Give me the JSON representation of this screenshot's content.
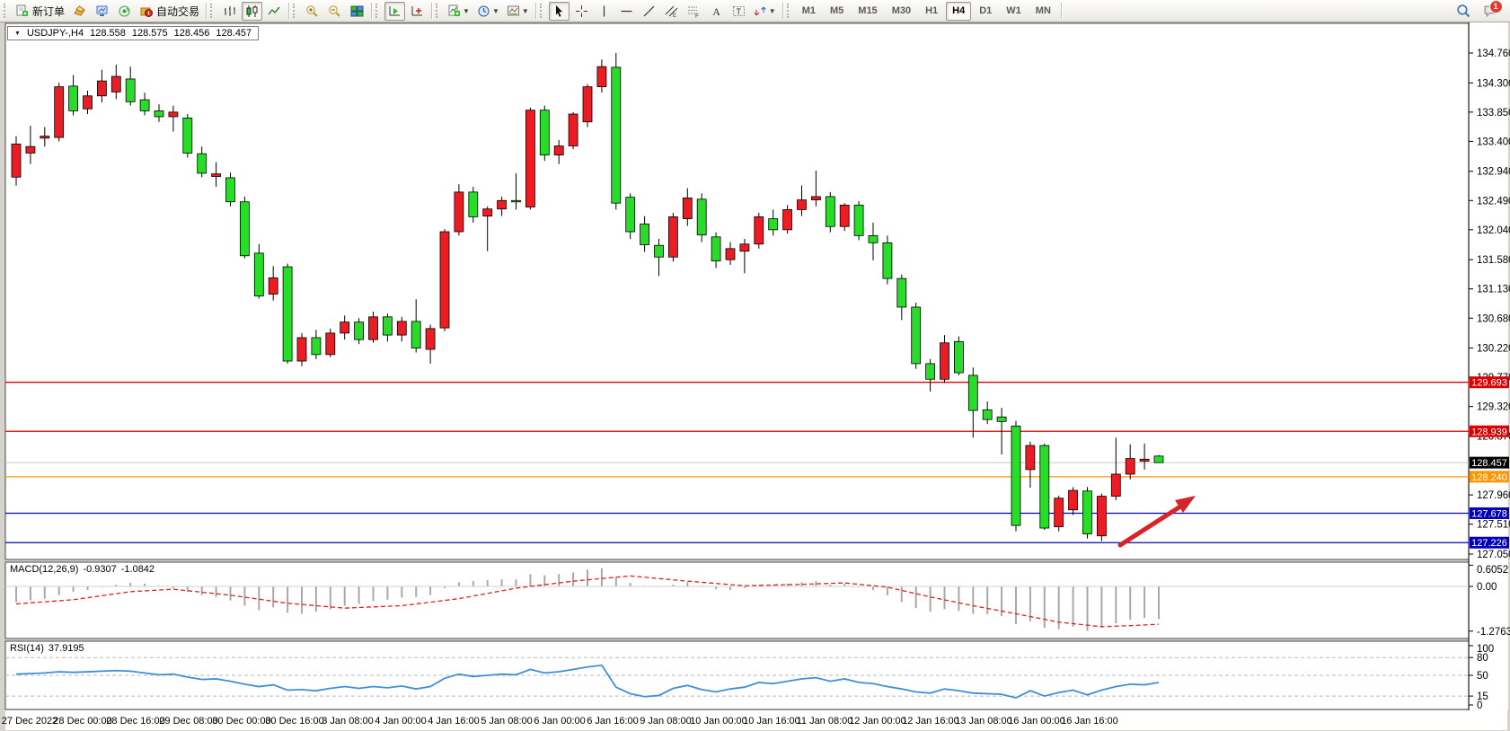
{
  "app": {
    "name": "MetaTrader 4",
    "language": "zh-CN"
  },
  "toolbar": {
    "groups": [
      {
        "name": "trading",
        "items": [
          {
            "name": "new-order-button",
            "icon": "new-order-icon",
            "label": "新订单"
          },
          {
            "name": "chart-profile-button",
            "icon": "gold-cube-icon"
          },
          {
            "name": "terminal-button",
            "icon": "terminal-icon"
          },
          {
            "name": "signals-button",
            "icon": "signal-icon"
          },
          {
            "name": "auto-trading-button",
            "icon": "auto-trading-icon",
            "label": "自动交易"
          }
        ]
      },
      {
        "name": "chart-type",
        "items": [
          {
            "name": "bar-chart-button",
            "icon": "bar-chart-icon"
          },
          {
            "name": "candlestick-chart-button",
            "icon": "candlestick-icon",
            "active": true
          },
          {
            "name": "line-chart-button",
            "icon": "line-chart-icon"
          }
        ]
      },
      {
        "name": "zoom",
        "items": [
          {
            "name": "zoom-in-button",
            "icon": "zoom-in-icon"
          },
          {
            "name": "zoom-out-button",
            "icon": "zoom-out-icon"
          },
          {
            "name": "tile-windows-button",
            "icon": "tile-windows-icon"
          }
        ]
      },
      {
        "name": "scrolling",
        "items": [
          {
            "name": "auto-scroll-button",
            "icon": "auto-scroll-icon",
            "active": true
          },
          {
            "name": "chart-shift-button",
            "icon": "chart-shift-icon"
          }
        ]
      },
      {
        "name": "objects",
        "items": [
          {
            "name": "indicators-button",
            "icon": "indicators-icon",
            "dropdown": true
          },
          {
            "name": "periods-button",
            "icon": "clock-icon",
            "dropdown": true
          },
          {
            "name": "templates-button",
            "icon": "template-icon",
            "dropdown": true
          }
        ]
      },
      {
        "name": "drawing",
        "items": [
          {
            "name": "cursor-button",
            "icon": "cursor-icon",
            "active": true
          },
          {
            "name": "crosshair-button",
            "icon": "crosshair-icon"
          },
          {
            "name": "vertical-line-button",
            "icon": "vertical-line-icon"
          },
          {
            "name": "horizontal-line-button",
            "icon": "horizontal-line-icon"
          },
          {
            "name": "trendline-button",
            "icon": "trendline-icon"
          },
          {
            "name": "equidistant-channel-button",
            "icon": "channel-icon"
          },
          {
            "name": "fibonacci-button",
            "icon": "fibonacci-icon"
          },
          {
            "name": "text-button",
            "icon": "text-icon"
          },
          {
            "name": "text-label-button",
            "icon": "text-label-icon"
          },
          {
            "name": "arrows-button",
            "icon": "arrows-icon",
            "dropdown": true
          }
        ]
      }
    ],
    "timeframes": {
      "options": [
        "M1",
        "M5",
        "M15",
        "M30",
        "H1",
        "H4",
        "D1",
        "W1",
        "MN"
      ],
      "active": "H4"
    },
    "right_items": [
      {
        "name": "search-button",
        "icon": "search-icon"
      },
      {
        "name": "notifications-button",
        "icon": "chat-icon",
        "badge": "1"
      }
    ]
  },
  "chart": {
    "info_bar": {
      "collapse_glyph": "▼",
      "symbol_period": "USDJPY-,H4",
      "open": "128.558",
      "high": "128.575",
      "low": "128.456",
      "close": "128.457"
    },
    "y_axis_ticks": [
      "134.760",
      "134.300",
      "133.850",
      "133.400",
      "132.940",
      "132.490",
      "132.040",
      "131.580",
      "131.130",
      "130.680",
      "130.220",
      "129.770",
      "129.320",
      "128.870",
      "127.960",
      "127.510",
      "127.050"
    ],
    "price_lines": [
      {
        "name": "resistance-line-1",
        "value": 129.693,
        "label": "129.693",
        "color": "#dd0000",
        "label_bg": "#dd0000"
      },
      {
        "name": "resistance-line-2",
        "value": 128.939,
        "label": "128.939",
        "color": "#dd0000",
        "label_bg": "#dd0000"
      },
      {
        "name": "bid-price-line",
        "value": 128.457,
        "label": "128.457",
        "color": "#c6c6c6",
        "label_bg": "#000000"
      },
      {
        "name": "alert-line",
        "value": 128.24,
        "label": "128.240",
        "color": "#ff9500",
        "label_bg": "#ff9500"
      },
      {
        "name": "support-line-1",
        "value": 127.678,
        "label": "127.678",
        "color": "#0000bb",
        "label_bg": "#0000bb"
      },
      {
        "name": "support-line-2",
        "value": 127.226,
        "label": "127.226",
        "color": "#0000bb",
        "label_bg": "#0000bb"
      }
    ],
    "arrow_annotation": {
      "color": "#d8232a",
      "from_price": 127.2,
      "to_price": 127.95,
      "direction": "up-right"
    },
    "colors": {
      "bull_candle": "#ec1c24",
      "bear_candle": "#27dd27",
      "candle_border": "#000000",
      "background": "#ffffff",
      "axis_text": "#000000",
      "macd_histogram": "#a8a8a8",
      "macd_signal": "#e02020",
      "rsi_line": "#3e8fd8",
      "level_dash": "#b8b8b8"
    }
  },
  "chart_data": [
    {
      "type": "candlestick",
      "title": "USDJPY- H4",
      "x_labels": [
        "27 Dec 2022",
        "28 Dec 00:00",
        "28 Dec 16:00",
        "29 Dec 08:00",
        "30 Dec 00:00",
        "30 Dec 16:00",
        "3 Jan 08:00",
        "4 Jan 00:00",
        "4 Jan 16:00",
        "5 Jan 08:00",
        "6 Jan 00:00",
        "6 Jan 16:00",
        "9 Jan 08:00",
        "10 Jan 00:00",
        "10 Jan 16:00",
        "11 Jan 08:00",
        "12 Jan 00:00",
        "12 Jan 16:00",
        "13 Jan 08:00",
        "16 Jan 00:00",
        "16 Jan 16:00"
      ],
      "ylim": [
        127.05,
        134.76
      ],
      "ohlc": [
        [
          132.85,
          133.48,
          132.72,
          133.36
        ],
        [
          133.22,
          133.64,
          133.05,
          133.32
        ],
        [
          133.45,
          133.62,
          133.32,
          133.48
        ],
        [
          133.46,
          134.3,
          133.4,
          134.24
        ],
        [
          134.25,
          134.42,
          133.8,
          133.87
        ],
        [
          133.9,
          134.18,
          133.82,
          134.1
        ],
        [
          134.1,
          134.5,
          134.0,
          134.33
        ],
        [
          134.16,
          134.58,
          134.05,
          134.4
        ],
        [
          134.36,
          134.55,
          133.95,
          134.01
        ],
        [
          134.04,
          134.15,
          133.8,
          133.87
        ],
        [
          133.87,
          133.97,
          133.7,
          133.78
        ],
        [
          133.78,
          133.95,
          133.55,
          133.85
        ],
        [
          133.76,
          133.82,
          133.15,
          133.22
        ],
        [
          133.21,
          133.32,
          132.85,
          132.91
        ],
        [
          132.86,
          133.08,
          132.7,
          132.9
        ],
        [
          132.84,
          132.92,
          132.4,
          132.47
        ],
        [
          132.47,
          132.55,
          131.6,
          131.64
        ],
        [
          131.68,
          131.82,
          130.98,
          131.02
        ],
        [
          131.05,
          131.48,
          130.95,
          131.3
        ],
        [
          131.47,
          131.52,
          129.98,
          130.02
        ],
        [
          130.02,
          130.45,
          129.94,
          130.38
        ],
        [
          130.38,
          130.5,
          130.05,
          130.12
        ],
        [
          130.12,
          130.52,
          130.08,
          130.45
        ],
        [
          130.45,
          130.72,
          130.35,
          130.62
        ],
        [
          130.62,
          130.68,
          130.28,
          130.35
        ],
        [
          130.35,
          130.78,
          130.3,
          130.7
        ],
        [
          130.7,
          130.75,
          130.32,
          130.42
        ],
        [
          130.42,
          130.7,
          130.32,
          130.63
        ],
        [
          130.63,
          130.97,
          130.15,
          130.22
        ],
        [
          130.2,
          130.58,
          129.98,
          130.52
        ],
        [
          130.53,
          132.05,
          130.48,
          132.01
        ],
        [
          132.01,
          132.74,
          131.95,
          132.62
        ],
        [
          132.62,
          132.7,
          132.15,
          132.24
        ],
        [
          132.25,
          132.4,
          131.71,
          132.36
        ],
        [
          132.36,
          132.55,
          132.25,
          132.49
        ],
        [
          132.49,
          132.91,
          132.35,
          132.47
        ],
        [
          132.39,
          133.92,
          132.35,
          133.88
        ],
        [
          133.88,
          133.95,
          133.1,
          133.19
        ],
        [
          133.19,
          133.42,
          133.05,
          133.33
        ],
        [
          133.33,
          133.85,
          133.28,
          133.82
        ],
        [
          133.7,
          134.28,
          133.62,
          134.24
        ],
        [
          134.24,
          134.66,
          134.15,
          134.55
        ],
        [
          134.54,
          134.76,
          132.35,
          132.45
        ],
        [
          132.54,
          132.6,
          131.9,
          132.01
        ],
        [
          132.13,
          132.25,
          131.7,
          131.81
        ],
        [
          131.8,
          131.9,
          131.33,
          131.62
        ],
        [
          131.62,
          132.3,
          131.55,
          132.24
        ],
        [
          132.21,
          132.68,
          132.1,
          132.53
        ],
        [
          132.51,
          132.6,
          131.85,
          131.96
        ],
        [
          131.93,
          132.0,
          131.45,
          131.56
        ],
        [
          131.58,
          131.85,
          131.5,
          131.75
        ],
        [
          131.71,
          131.9,
          131.37,
          131.82
        ],
        [
          131.82,
          132.3,
          131.75,
          132.24
        ],
        [
          132.21,
          132.35,
          131.95,
          132.04
        ],
        [
          132.04,
          132.42,
          131.98,
          132.35
        ],
        [
          132.35,
          132.72,
          132.25,
          132.5
        ],
        [
          132.5,
          132.95,
          132.4,
          132.55
        ],
        [
          132.55,
          132.62,
          132.0,
          132.09
        ],
        [
          132.09,
          132.45,
          132.02,
          132.42
        ],
        [
          132.42,
          132.48,
          131.88,
          131.95
        ],
        [
          131.95,
          132.15,
          131.57,
          131.84
        ],
        [
          131.84,
          131.95,
          131.2,
          131.29
        ],
        [
          131.29,
          131.35,
          130.65,
          130.85
        ],
        [
          130.85,
          130.92,
          129.9,
          129.98
        ],
        [
          129.98,
          130.05,
          129.55,
          129.74
        ],
        [
          129.74,
          130.42,
          129.68,
          130.3
        ],
        [
          130.32,
          130.4,
          129.8,
          129.84
        ],
        [
          129.8,
          129.92,
          128.84,
          129.26
        ],
        [
          129.27,
          129.4,
          129.05,
          129.12
        ],
        [
          129.16,
          129.3,
          128.58,
          129.09
        ],
        [
          129.02,
          129.1,
          127.4,
          127.49
        ],
        [
          128.35,
          128.78,
          128.07,
          128.72
        ],
        [
          128.72,
          128.75,
          127.42,
          127.45
        ],
        [
          127.47,
          127.95,
          127.4,
          127.91
        ],
        [
          127.73,
          128.08,
          127.65,
          128.03
        ],
        [
          128.02,
          128.08,
          127.29,
          127.36
        ],
        [
          127.33,
          127.98,
          127.25,
          127.94
        ],
        [
          127.94,
          128.84,
          127.88,
          128.28
        ],
        [
          128.28,
          128.74,
          128.2,
          128.52
        ],
        [
          128.48,
          128.75,
          128.35,
          128.51
        ],
        [
          128.558,
          128.575,
          128.456,
          128.457
        ]
      ]
    },
    {
      "type": "bar",
      "title": "MACD(12,26,9)",
      "current_values": [
        "-0.9307",
        "-1.0842"
      ],
      "axis_labels": [
        "0.6052",
        "0.00",
        "-1.2763"
      ],
      "axis_values": [
        0.6052,
        0,
        -1.2763
      ],
      "histogram": [
        -0.45,
        -0.4,
        -0.35,
        -0.25,
        -0.15,
        -0.1,
        -0.02,
        0.05,
        0.1,
        0.08,
        0.02,
        -0.05,
        -0.15,
        -0.25,
        -0.3,
        -0.4,
        -0.55,
        -0.68,
        -0.6,
        -0.75,
        -0.78,
        -0.72,
        -0.65,
        -0.55,
        -0.5,
        -0.42,
        -0.38,
        -0.32,
        -0.3,
        -0.25,
        -0.05,
        0.12,
        0.15,
        0.18,
        0.2,
        0.2,
        0.35,
        0.32,
        0.35,
        0.4,
        0.48,
        0.52,
        0.25,
        0.1,
        0.02,
        -0.02,
        0.05,
        0.12,
        0.02,
        -0.08,
        -0.1,
        -0.05,
        0.02,
        0.03,
        0.08,
        0.12,
        0.15,
        0.05,
        0.08,
        -0.02,
        -0.1,
        -0.25,
        -0.45,
        -0.62,
        -0.72,
        -0.65,
        -0.7,
        -0.78,
        -0.8,
        -0.85,
        -1.08,
        -1.0,
        -1.18,
        -1.22,
        -1.15,
        -1.27,
        -1.18,
        -1.05,
        -0.95,
        -0.9,
        -0.93
      ],
      "signal_anchors": [
        [
          0,
          -0.5
        ],
        [
          4,
          -0.38
        ],
        [
          8,
          -0.15
        ],
        [
          11,
          -0.08
        ],
        [
          15,
          -0.25
        ],
        [
          19,
          -0.48
        ],
        [
          23,
          -0.62
        ],
        [
          27,
          -0.55
        ],
        [
          31,
          -0.35
        ],
        [
          35,
          -0.05
        ],
        [
          39,
          0.15
        ],
        [
          43,
          0.3
        ],
        [
          47,
          0.15
        ],
        [
          51,
          0.02
        ],
        [
          55,
          0.06
        ],
        [
          58,
          0.1
        ],
        [
          61,
          -0.02
        ],
        [
          64,
          -0.3
        ],
        [
          67,
          -0.55
        ],
        [
          70,
          -0.78
        ],
        [
          73,
          -1.02
        ],
        [
          76,
          -1.15
        ],
        [
          78,
          -1.12
        ],
        [
          80,
          -1.08
        ]
      ]
    },
    {
      "type": "line",
      "title": "RSI(14)",
      "current_value": "37.9195",
      "axis_labels": [
        "100",
        "80",
        "50",
        "15",
        "0"
      ],
      "axis_values": [
        100,
        80,
        50,
        15,
        0
      ],
      "levels": [
        80,
        50,
        15
      ],
      "values": [
        52,
        53,
        54,
        56,
        55,
        56,
        57,
        58,
        57,
        54,
        51,
        52,
        47,
        43,
        44,
        40,
        35,
        31,
        34,
        25,
        26,
        24,
        28,
        31,
        28,
        31,
        29,
        32,
        27,
        31,
        45,
        52,
        48,
        50,
        52,
        51,
        60,
        54,
        56,
        60,
        64,
        67,
        30,
        19,
        14,
        16,
        28,
        33,
        26,
        22,
        27,
        30,
        38,
        36,
        40,
        44,
        46,
        40,
        44,
        38,
        36,
        31,
        27,
        22,
        20,
        27,
        24,
        20,
        19,
        18,
        12,
        24,
        15,
        21,
        25,
        17,
        25,
        31,
        35,
        34,
        37.9
      ]
    }
  ],
  "indicators": {
    "macd": {
      "name": "MACD(12,26,9)",
      "main": "-0.9307",
      "signal": "-1.0842"
    },
    "rsi": {
      "name": "RSI(14)",
      "value": "37.9195"
    }
  }
}
